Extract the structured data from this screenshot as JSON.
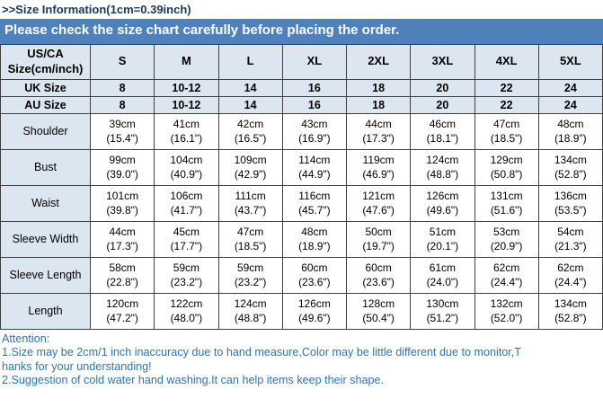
{
  "page": {
    "title": ">>Size Information(1cm=0.39inch)",
    "banner": "Please check the size chart carefully before placing the order."
  },
  "colors": {
    "banner_bg": "#4F81BD",
    "header_bg": "#DCE6F1",
    "title_text": "#17375E",
    "footer_text": "#2E74B5",
    "border": "#404040"
  },
  "table": {
    "corner_header": [
      "US/CA",
      "Size(cm/inch)"
    ],
    "sizes": [
      "S",
      "M",
      "L",
      "XL",
      "2XL",
      "3XL",
      "4XL",
      "5XL"
    ],
    "uk_row": {
      "label": "UK Size",
      "values": [
        "8",
        "10-12",
        "14",
        "16",
        "18",
        "20",
        "22",
        "24"
      ]
    },
    "au_row": {
      "label": "AU Size",
      "values": [
        "8",
        "10-12",
        "14",
        "16",
        "18",
        "20",
        "22",
        "24"
      ]
    },
    "measurements": [
      {
        "label": "Shoulder",
        "cm": [
          "39cm",
          "41cm",
          "42cm",
          "43cm",
          "44cm",
          "46cm",
          "47cm",
          "48cm"
        ],
        "inch": [
          "(15.4\")",
          "(16.1\")",
          "(16.5\")",
          "(16.9\")",
          "(17.3\")",
          "(18.1\")",
          "(18.5\")",
          "(18.9\")"
        ]
      },
      {
        "label": "Bust",
        "cm": [
          "99cm",
          "104cm",
          "109cm",
          "114cm",
          "119cm",
          "124cm",
          "129cm",
          "134cm"
        ],
        "inch": [
          "(39.0\")",
          "(40.9\")",
          "(42.9\")",
          "(44.9\")",
          "(46.9\")",
          "(48.8\")",
          "(50.8\")",
          "(52.8\")"
        ]
      },
      {
        "label": "Waist",
        "cm": [
          "101cm",
          "106cm",
          "111cm",
          "116cm",
          "121cm",
          "126cm",
          "131cm",
          "136cm"
        ],
        "inch": [
          "(39.8\")",
          "(41.7\")",
          "(43.7\")",
          "(45.7\")",
          "(47.6\")",
          "(49.6\")",
          "(51.6\")",
          "(53.5\")"
        ]
      },
      {
        "label": "Sleeve Width",
        "cm": [
          "44cm",
          "45cm",
          "47cm",
          "48cm",
          "50cm",
          "51cm",
          "53cm",
          "54cm"
        ],
        "inch": [
          "(17.3\")",
          "(17.7\")",
          "(18.5\")",
          "(18.9\")",
          "(19.7\")",
          "(20.1\")",
          "(20.9\")",
          "(21.3\")"
        ]
      },
      {
        "label": "Sleeve Length",
        "cm": [
          "58cm",
          "59cm",
          "59cm",
          "60cm",
          "60cm",
          "61cm",
          "62cm",
          "62cm"
        ],
        "inch": [
          "(22.8\")",
          "(23.2\")",
          "(23.2\")",
          "(23.6\")",
          "(23.6\")",
          "(24.0\")",
          "(24.4\")",
          "(24.4\")"
        ]
      },
      {
        "label": "Length",
        "cm": [
          "120cm",
          "122cm",
          "124cm",
          "126cm",
          "128cm",
          "130cm",
          "132cm",
          "134cm"
        ],
        "inch": [
          "(47.2\")",
          "(48.0\")",
          "(48.8\")",
          "(49.6\")",
          "(50.4\")",
          "(51.2\")",
          "(52.0\")",
          "(52.8\")"
        ]
      }
    ]
  },
  "footer": {
    "attention": "Attention:",
    "lines": [
      "1.Size may be 2cm/1 inch inaccuracy due to hand measure,Color may be little different due to monitor,T",
      "hanks for your understanding!",
      "2.Suggestion of cold water hand washing.It can help items keep their shape."
    ]
  }
}
